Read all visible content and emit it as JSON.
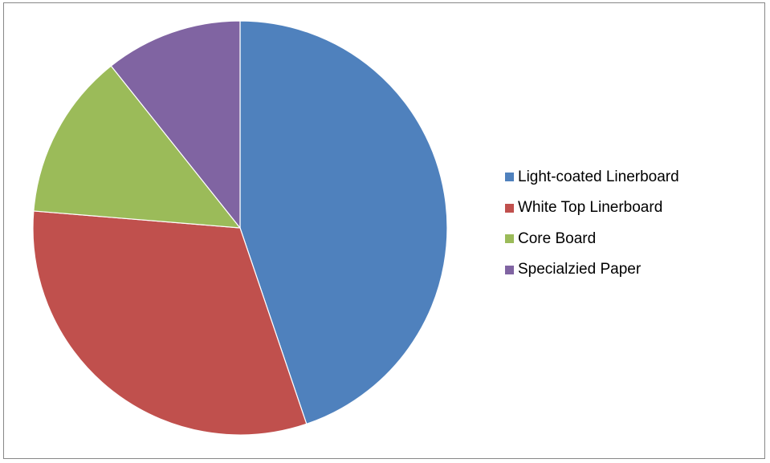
{
  "chart_data": {
    "type": "pie",
    "categories": [
      "Light-coated Linerboard",
      "White Top Linerboard",
      "Core Board",
      "Specialzied Paper"
    ],
    "values": [
      44.8,
      31.5,
      13.0,
      10.7
    ],
    "colors": [
      "#4f81bd",
      "#c0504d",
      "#9bbb59",
      "#8064a2"
    ],
    "start_angle_deg": 0,
    "direction": "clockwise",
    "legend_position": "right"
  }
}
